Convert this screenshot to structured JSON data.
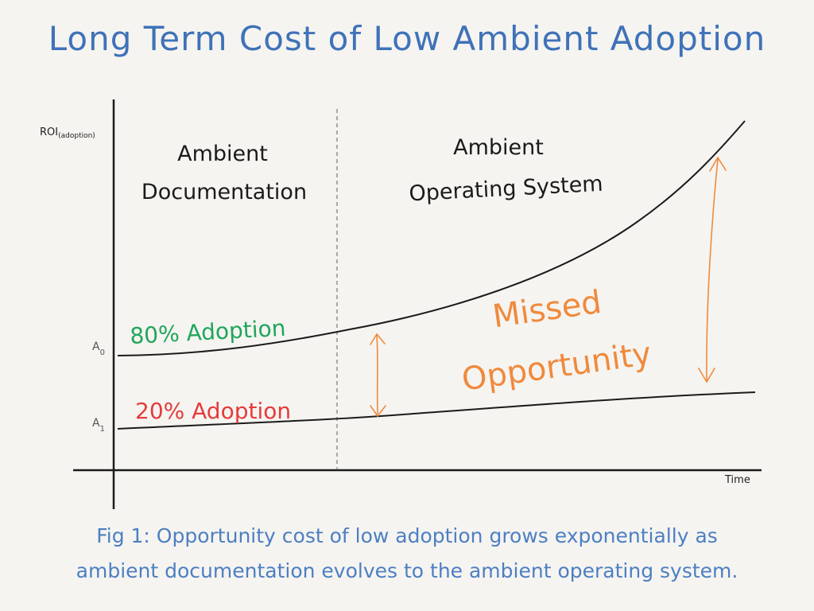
{
  "title": "Long Term Cost of Low Ambient Adoption",
  "axes": {
    "y_label_main": "ROI",
    "y_label_sub": "(adoption)",
    "x_label": "Time",
    "tick_high_main": "A",
    "tick_high_sub": "0",
    "tick_low_main": "A",
    "tick_low_sub": "1"
  },
  "regions": {
    "left_line1": "Ambient",
    "left_line2": "Documentation",
    "right_line1": "Ambient",
    "right_line2": "Operating System"
  },
  "series": {
    "high_label": "80% Adoption",
    "low_label": "20% Adoption"
  },
  "gap": {
    "line1": "Missed",
    "line2": "Opportunity"
  },
  "caption": {
    "line1": "Fig 1: Opportunity cost of low adoption grows exponentially as",
    "line2": "ambient documentation evolves to the ambient operating system."
  },
  "colors": {
    "title": "#3f72b8",
    "caption": "#4d7fc2",
    "high_adoption": "#20a65a",
    "low_adoption": "#e53b3b",
    "missed_opportunity": "#f08a3c",
    "axes": "#1b1b1b",
    "divider": "#a9a9a9"
  }
}
